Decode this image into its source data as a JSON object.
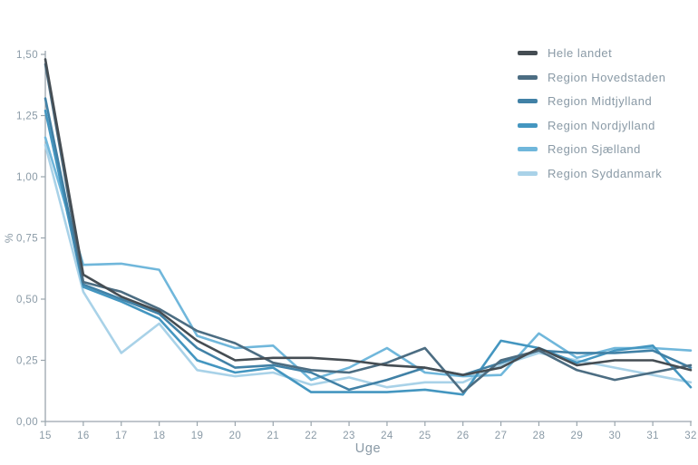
{
  "colors": {
    "axis": "#9aa5ad",
    "text": "#8a9aa6",
    "background": "#ffffff"
  },
  "chart_data": {
    "type": "line",
    "x": [
      15,
      16,
      17,
      18,
      19,
      20,
      21,
      22,
      23,
      24,
      25,
      26,
      27,
      28,
      29,
      30,
      31,
      32
    ],
    "xtick_labels": [
      "15",
      "16",
      "17",
      "18",
      "19",
      "20",
      "21",
      "22",
      "23",
      "24",
      "25",
      "26",
      "27",
      "28",
      "29",
      "30",
      "31",
      "32"
    ],
    "ytick_values": [
      0,
      0.25,
      0.5,
      0.75,
      1.0,
      1.25,
      1.5
    ],
    "ytick_labels": [
      "0,00",
      "0,25",
      "0,50",
      "0,75",
      "1,00",
      "1,25",
      "1,50"
    ],
    "xlabel": "Uge",
    "ylabel": "%",
    "xlim": [
      15,
      32
    ],
    "ylim": [
      0,
      1.5
    ],
    "grid": false,
    "legend_position": "top-right",
    "series": [
      {
        "name": "Hele landet",
        "color": "#454d53",
        "values": [
          1.48,
          0.6,
          0.51,
          0.45,
          0.33,
          0.25,
          0.26,
          0.26,
          0.25,
          0.23,
          0.22,
          0.19,
          0.22,
          0.3,
          0.23,
          0.25,
          0.25,
          0.21
        ]
      },
      {
        "name": "Region Hovedstaden",
        "color": "#4c6d82",
        "values": [
          1.46,
          0.57,
          0.53,
          0.46,
          0.37,
          0.32,
          0.24,
          0.21,
          0.2,
          0.24,
          0.3,
          0.12,
          0.25,
          0.29,
          0.21,
          0.17,
          0.2,
          0.23
        ]
      },
      {
        "name": "Region Midtjylland",
        "color": "#4181a6",
        "values": [
          1.32,
          0.56,
          0.5,
          0.44,
          0.3,
          0.22,
          0.23,
          0.2,
          0.13,
          0.17,
          0.22,
          0.19,
          0.24,
          0.29,
          0.28,
          0.28,
          0.29,
          0.22
        ]
      },
      {
        "name": "Region Nordjylland",
        "color": "#4496c0",
        "values": [
          1.27,
          0.55,
          0.49,
          0.42,
          0.25,
          0.2,
          0.22,
          0.12,
          0.12,
          0.12,
          0.13,
          0.11,
          0.33,
          0.3,
          0.24,
          0.29,
          0.31,
          0.14
        ]
      },
      {
        "name": "Region Sjælland",
        "color": "#70b7db",
        "values": [
          1.16,
          0.64,
          0.645,
          0.62,
          0.35,
          0.3,
          0.31,
          0.17,
          0.22,
          0.3,
          0.2,
          0.185,
          0.19,
          0.36,
          0.26,
          0.3,
          0.3,
          0.29
        ]
      },
      {
        "name": "Region Syddanmark",
        "color": "#a9d2e8",
        "values": [
          1.13,
          0.53,
          0.28,
          0.4,
          0.21,
          0.185,
          0.2,
          0.15,
          0.18,
          0.14,
          0.16,
          0.16,
          0.23,
          0.28,
          0.25,
          0.22,
          0.19,
          0.16
        ]
      }
    ]
  }
}
